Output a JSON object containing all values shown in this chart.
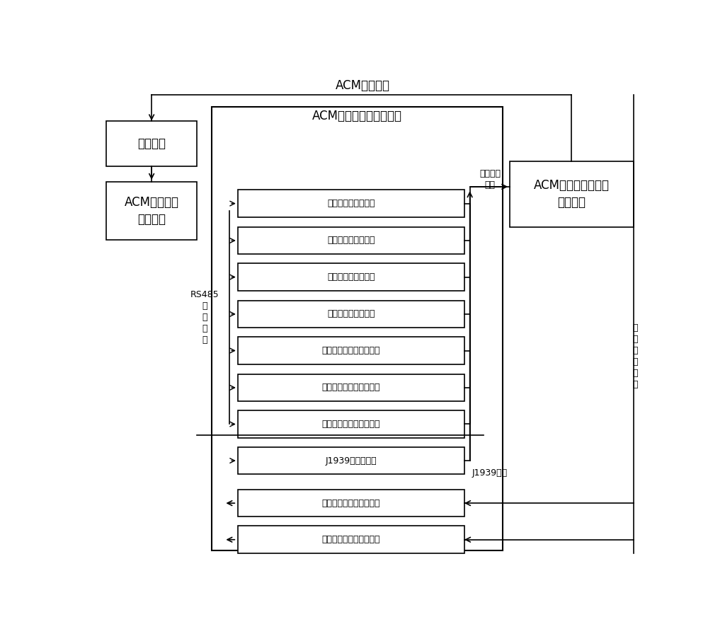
{
  "fig_w": 10.0,
  "fig_h": 8.89,
  "dpi": 100,
  "top_bus_label": "ACM通讯总线",
  "big_box_label": "ACM外部信号模拟器底板",
  "host_label": "主机设备",
  "acm_ctrl_label": "ACM检测系统\n控制软件",
  "acm_controller_label": "ACM混浆密度液位自\n动控制器",
  "rs485_label": "RS485\n控\n制\n总\n线",
  "detect_bus_label": "检测信号\n总线",
  "j1939_bus_label": "J1939总线",
  "ctrl_bus_label": "控\n制\n信\n号\n总\n线",
  "inner_boxes": [
    "压力检测信号模拟器",
    "排量检测信号模拟器",
    "液位检测信号模拟器",
    "密度检测信号模拟器",
    "清水阀位检测信号模拟器",
    "灰阀阀位检测信号模拟器",
    "清水流量检测信号模拟器",
    "J1939信号模拟器",
    "清水阀位控制信号模拟器",
    "灰阀阀位控制信号模拟器"
  ],
  "lw": 1.2,
  "fn": 12,
  "fs": 9,
  "fl": 9
}
